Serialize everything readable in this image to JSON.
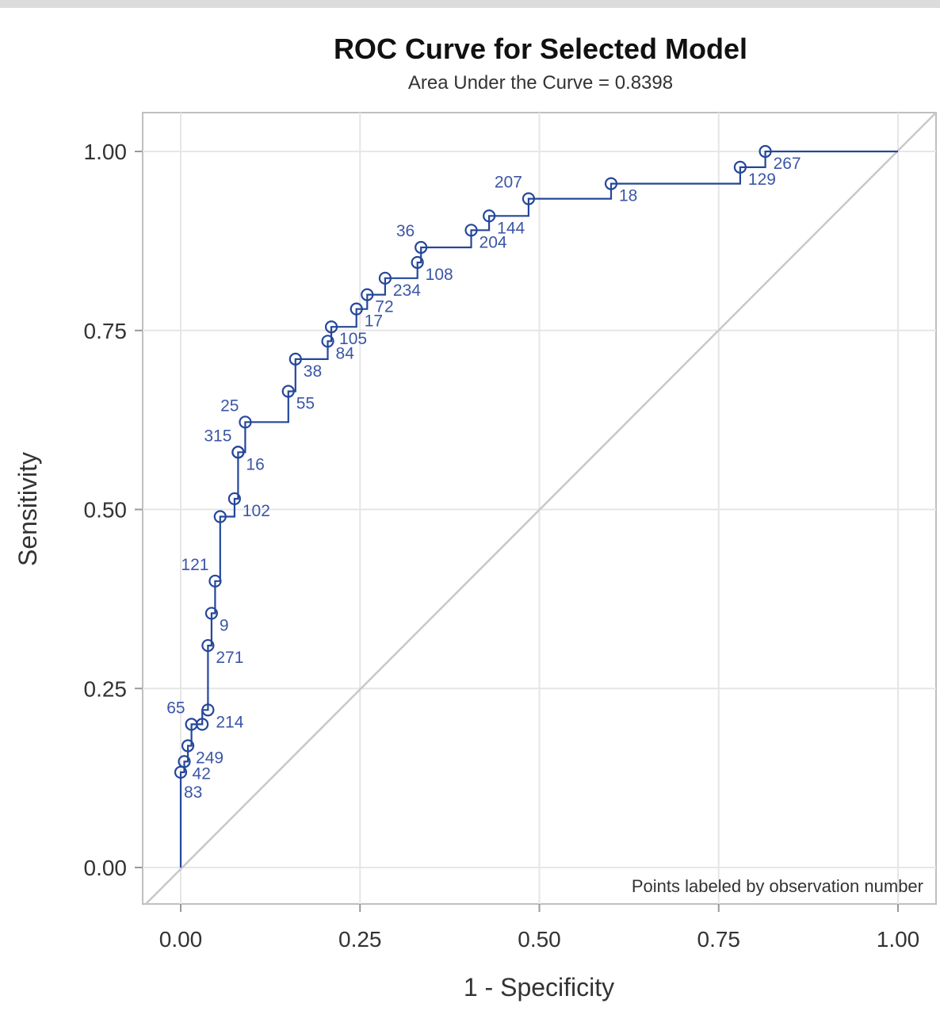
{
  "chart_data": {
    "type": "line",
    "title": "ROC Curve for Selected Model",
    "subtitle": "Area Under the Curve = 0.8398",
    "xlabel": "1 - Specificity",
    "ylabel": "Sensitivity",
    "xlim": [
      0,
      1
    ],
    "ylim": [
      0,
      1
    ],
    "x_ticks": [
      "0.00",
      "0.25",
      "0.50",
      "0.75",
      "1.00"
    ],
    "y_ticks": [
      "0.00",
      "0.25",
      "0.50",
      "0.75",
      "1.00"
    ],
    "grid": true,
    "note": "Points labeled by observation number",
    "colors": {
      "curve": "#25479a",
      "reference": "#c8c8cc",
      "grid": "#e6e6e6",
      "label": "#3b56a6"
    },
    "curve": [
      [
        0.0,
        0.0
      ],
      [
        0.0,
        0.133
      ],
      [
        0.005,
        0.133
      ],
      [
        0.005,
        0.148
      ],
      [
        0.01,
        0.148
      ],
      [
        0.01,
        0.17
      ],
      [
        0.015,
        0.17
      ],
      [
        0.015,
        0.2
      ],
      [
        0.03,
        0.2
      ],
      [
        0.03,
        0.22
      ],
      [
        0.038,
        0.22
      ],
      [
        0.038,
        0.31
      ],
      [
        0.043,
        0.31
      ],
      [
        0.043,
        0.355
      ],
      [
        0.048,
        0.355
      ],
      [
        0.048,
        0.4
      ],
      [
        0.055,
        0.4
      ],
      [
        0.055,
        0.49
      ],
      [
        0.075,
        0.49
      ],
      [
        0.075,
        0.515
      ],
      [
        0.08,
        0.515
      ],
      [
        0.08,
        0.58
      ],
      [
        0.09,
        0.58
      ],
      [
        0.09,
        0.622
      ],
      [
        0.15,
        0.622
      ],
      [
        0.15,
        0.665
      ],
      [
        0.16,
        0.665
      ],
      [
        0.16,
        0.71
      ],
      [
        0.205,
        0.71
      ],
      [
        0.205,
        0.735
      ],
      [
        0.21,
        0.735
      ],
      [
        0.21,
        0.755
      ],
      [
        0.245,
        0.755
      ],
      [
        0.245,
        0.78
      ],
      [
        0.26,
        0.78
      ],
      [
        0.26,
        0.8
      ],
      [
        0.285,
        0.8
      ],
      [
        0.285,
        0.823
      ],
      [
        0.33,
        0.823
      ],
      [
        0.33,
        0.845
      ],
      [
        0.335,
        0.845
      ],
      [
        0.335,
        0.866
      ],
      [
        0.405,
        0.866
      ],
      [
        0.405,
        0.89
      ],
      [
        0.43,
        0.89
      ],
      [
        0.43,
        0.91
      ],
      [
        0.485,
        0.91
      ],
      [
        0.485,
        0.934
      ],
      [
        0.6,
        0.934
      ],
      [
        0.6,
        0.955
      ],
      [
        0.78,
        0.955
      ],
      [
        0.78,
        0.978
      ],
      [
        0.815,
        0.978
      ],
      [
        0.815,
        1.0
      ],
      [
        1.0,
        1.0
      ]
    ],
    "points": [
      {
        "label": "83",
        "x": 0.0,
        "y": 0.133,
        "pos": "below"
      },
      {
        "label": "42",
        "x": 0.005,
        "y": 0.148,
        "pos": "right"
      },
      {
        "label": "249",
        "x": 0.01,
        "y": 0.17,
        "pos": "right"
      },
      {
        "label": "65",
        "x": 0.015,
        "y": 0.2,
        "pos": "left"
      },
      {
        "label": "",
        "x": 0.03,
        "y": 0.2,
        "pos": "none"
      },
      {
        "label": "214",
        "x": 0.038,
        "y": 0.22,
        "pos": "right"
      },
      {
        "label": "271",
        "x": 0.038,
        "y": 0.31,
        "pos": "right"
      },
      {
        "label": "9",
        "x": 0.043,
        "y": 0.355,
        "pos": "right"
      },
      {
        "label": "121",
        "x": 0.048,
        "y": 0.4,
        "pos": "left"
      },
      {
        "label": "",
        "x": 0.055,
        "y": 0.49,
        "pos": "none"
      },
      {
        "label": "102",
        "x": 0.075,
        "y": 0.515,
        "pos": "right"
      },
      {
        "label": "315",
        "x": 0.08,
        "y": 0.58,
        "pos": "left"
      },
      {
        "label": "16",
        "x": 0.08,
        "y": 0.58,
        "pos": "right"
      },
      {
        "label": "25",
        "x": 0.09,
        "y": 0.622,
        "pos": "left"
      },
      {
        "label": "55",
        "x": 0.15,
        "y": 0.665,
        "pos": "right"
      },
      {
        "label": "38",
        "x": 0.16,
        "y": 0.71,
        "pos": "right"
      },
      {
        "label": "84",
        "x": 0.205,
        "y": 0.735,
        "pos": "right"
      },
      {
        "label": "105",
        "x": 0.21,
        "y": 0.755,
        "pos": "right"
      },
      {
        "label": "17",
        "x": 0.245,
        "y": 0.78,
        "pos": "right"
      },
      {
        "label": "72",
        "x": 0.26,
        "y": 0.8,
        "pos": "right"
      },
      {
        "label": "234",
        "x": 0.285,
        "y": 0.823,
        "pos": "right"
      },
      {
        "label": "108",
        "x": 0.33,
        "y": 0.845,
        "pos": "right"
      },
      {
        "label": "36",
        "x": 0.335,
        "y": 0.866,
        "pos": "left"
      },
      {
        "label": "204",
        "x": 0.405,
        "y": 0.89,
        "pos": "right"
      },
      {
        "label": "144",
        "x": 0.43,
        "y": 0.91,
        "pos": "right"
      },
      {
        "label": "207",
        "x": 0.485,
        "y": 0.934,
        "pos": "left"
      },
      {
        "label": "18",
        "x": 0.6,
        "y": 0.955,
        "pos": "right"
      },
      {
        "label": "129",
        "x": 0.78,
        "y": 0.978,
        "pos": "right"
      },
      {
        "label": "267",
        "x": 0.815,
        "y": 1.0,
        "pos": "right"
      }
    ]
  }
}
